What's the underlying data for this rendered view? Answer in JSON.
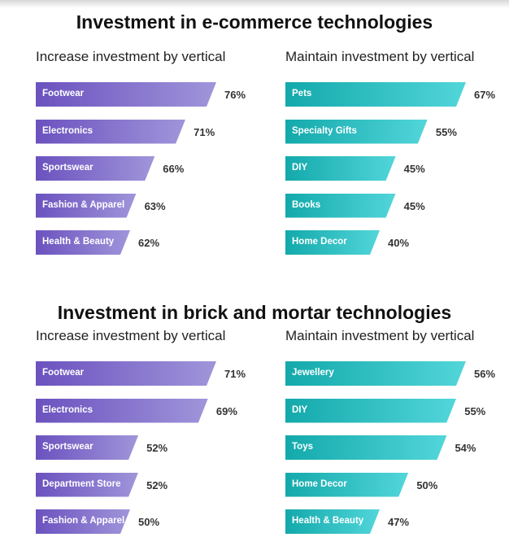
{
  "chart_data": [
    {
      "type": "bar",
      "title": "Investment in e-commerce technologies",
      "subtitle": "Increase investment by vertical",
      "color": "#6b52bf",
      "categories": [
        "Footwear",
        "Electronics",
        "Sportswear",
        "Fashion & Apparel",
        "Health & Beauty"
      ],
      "values": [
        76,
        71,
        66,
        63,
        62
      ],
      "labels": [
        "76%",
        "71%",
        "66%",
        "63%",
        "62%"
      ]
    },
    {
      "type": "bar",
      "subtitle": "Maintain investment by vertical",
      "color": "#13a9ab",
      "categories": [
        "Pets",
        "Specialty Gifts",
        "DIY",
        "Books",
        "Home Decor"
      ],
      "values": [
        67,
        55,
        45,
        45,
        40
      ],
      "labels": [
        "67%",
        "55%",
        "45%",
        "45%",
        "40%"
      ]
    },
    {
      "type": "bar",
      "title": "Investment in brick and mortar technologies",
      "subtitle": "Increase investment by vertical",
      "color": "#6b52bf",
      "categories": [
        "Footwear",
        "Electronics",
        "Sportswear",
        "Department Store",
        "Fashion & Apparel"
      ],
      "values": [
        71,
        69,
        52,
        52,
        50
      ],
      "labels": [
        "71%",
        "69%",
        "52%",
        "52%",
        "50%"
      ]
    },
    {
      "type": "bar",
      "subtitle": "Maintain investment by vertical",
      "color": "#13a9ab",
      "categories": [
        "Jewellery",
        "DIY",
        "Toys",
        "Home Decor",
        "Health & Beauty"
      ],
      "values": [
        56,
        55,
        54,
        50,
        47
      ],
      "labels": [
        "56%",
        "55%",
        "54%",
        "50%",
        "47%"
      ]
    }
  ]
}
